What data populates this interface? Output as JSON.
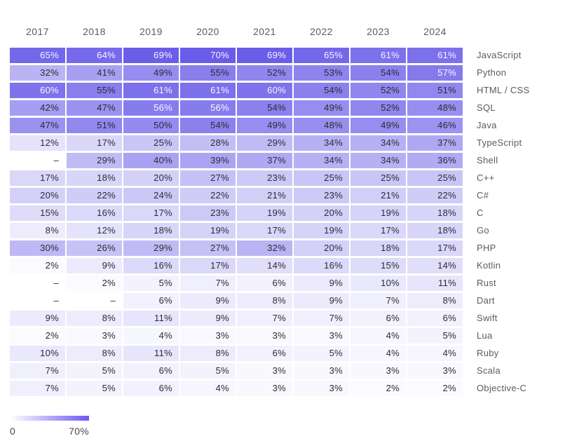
{
  "chart_data": {
    "type": "heatmap",
    "title": "",
    "xlabel": "",
    "ylabel": "",
    "x": [
      "2017",
      "2018",
      "2019",
      "2020",
      "2021",
      "2022",
      "2023",
      "2024"
    ],
    "rows": [
      {
        "label": "JavaScript",
        "values": [
          65,
          64,
          69,
          70,
          69,
          65,
          61,
          61
        ]
      },
      {
        "label": "Python",
        "values": [
          32,
          41,
          49,
          55,
          52,
          53,
          54,
          57
        ]
      },
      {
        "label": "HTML / CSS",
        "values": [
          60,
          55,
          61,
          61,
          60,
          54,
          52,
          51
        ]
      },
      {
        "label": "SQL",
        "values": [
          42,
          47,
          56,
          56,
          54,
          49,
          52,
          48
        ]
      },
      {
        "label": "Java",
        "values": [
          47,
          51,
          50,
          54,
          49,
          48,
          49,
          46
        ]
      },
      {
        "label": "TypeScript",
        "values": [
          12,
          17,
          25,
          28,
          29,
          34,
          34,
          37
        ]
      },
      {
        "label": "Shell",
        "values": [
          null,
          29,
          40,
          39,
          37,
          34,
          34,
          36
        ]
      },
      {
        "label": "C++",
        "values": [
          17,
          18,
          20,
          27,
          23,
          25,
          25,
          25
        ]
      },
      {
        "label": "C#",
        "values": [
          20,
          22,
          24,
          22,
          21,
          23,
          21,
          22
        ]
      },
      {
        "label": "C",
        "values": [
          15,
          16,
          17,
          23,
          19,
          20,
          19,
          18
        ]
      },
      {
        "label": "Go",
        "values": [
          8,
          12,
          18,
          19,
          17,
          19,
          17,
          18
        ]
      },
      {
        "label": "PHP",
        "values": [
          30,
          26,
          29,
          27,
          32,
          20,
          18,
          17
        ]
      },
      {
        "label": "Kotlin",
        "values": [
          2,
          9,
          16,
          17,
          14,
          16,
          15,
          14
        ]
      },
      {
        "label": "Rust",
        "values": [
          null,
          2,
          5,
          7,
          6,
          9,
          10,
          11
        ]
      },
      {
        "label": "Dart",
        "values": [
          null,
          null,
          6,
          9,
          8,
          9,
          7,
          8
        ]
      },
      {
        "label": "Swift",
        "values": [
          9,
          8,
          11,
          9,
          7,
          7,
          6,
          6
        ]
      },
      {
        "label": "Lua",
        "values": [
          2,
          3,
          4,
          3,
          3,
          3,
          4,
          5
        ]
      },
      {
        "label": "Ruby",
        "values": [
          10,
          8,
          11,
          8,
          6,
          5,
          4,
          4
        ]
      },
      {
        "label": "Scala",
        "values": [
          7,
          5,
          6,
          5,
          3,
          3,
          3,
          3
        ]
      },
      {
        "label": "Objective-C",
        "values": [
          7,
          5,
          6,
          4,
          3,
          3,
          2,
          2
        ]
      }
    ],
    "value_suffix": "%",
    "null_display": "–",
    "color_scale": {
      "min": 0,
      "max": 70,
      "start": "#ffffff",
      "end": "#685ce8",
      "legend_end": "#6c5af2",
      "light_text_min": 56
    },
    "legend": {
      "min_label": "0",
      "max_label": "70%"
    }
  }
}
